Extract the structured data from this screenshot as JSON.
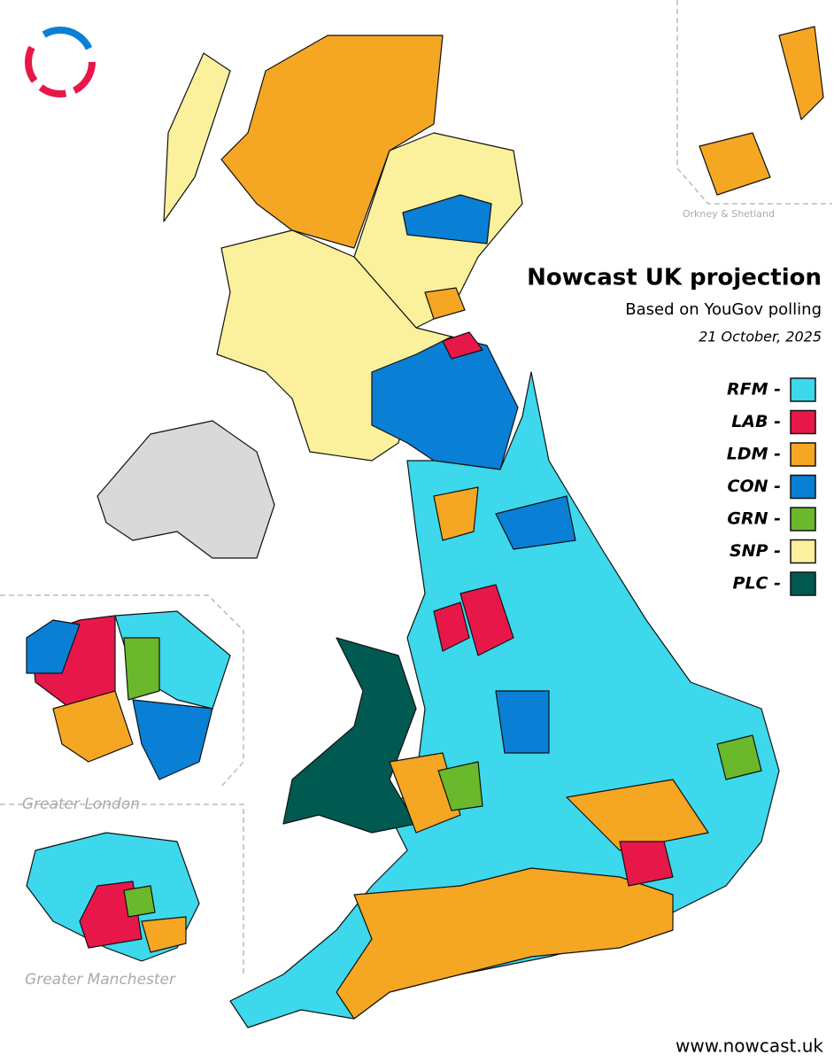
{
  "header": {
    "title": "Nowcast UK projection",
    "subtitle": "Based on YouGov polling",
    "date": "21 October, 2025"
  },
  "legend": [
    {
      "label": "RFM -",
      "color": "#3dd8ec"
    },
    {
      "label": "LAB -",
      "color": "#e8174a"
    },
    {
      "label": "LDM -",
      "color": "#f5a623"
    },
    {
      "label": "CON -",
      "color": "#0a7fd6"
    },
    {
      "label": "GRN -",
      "color": "#6ab82c"
    },
    {
      "label": "SNP -",
      "color": "#fbf09c"
    },
    {
      "label": "PLC -",
      "color": "#005a52"
    }
  ],
  "insets": {
    "orkney": "Orkney & Shetland",
    "london": "Greater London",
    "manchester": "Greater Manchester"
  },
  "footer": {
    "url": "www.nowcast.uk"
  }
}
